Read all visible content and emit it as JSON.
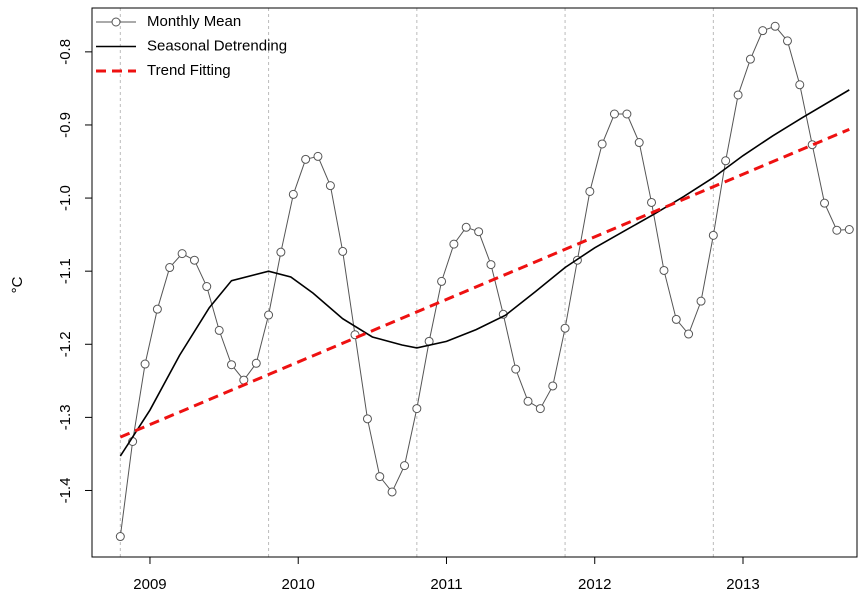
{
  "chart_data": {
    "type": "line",
    "ylabel": "°C",
    "x": [
      2008.8,
      2008.883,
      2008.967,
      2009.05,
      2009.133,
      2009.217,
      2009.3,
      2009.383,
      2009.467,
      2009.55,
      2009.633,
      2009.717,
      2009.8,
      2009.883,
      2009.967,
      2010.05,
      2010.133,
      2010.217,
      2010.3,
      2010.383,
      2010.467,
      2010.55,
      2010.633,
      2010.717,
      2010.8,
      2010.883,
      2010.967,
      2011.05,
      2011.133,
      2011.217,
      2011.3,
      2011.383,
      2011.467,
      2011.55,
      2011.633,
      2011.717,
      2011.8,
      2011.883,
      2011.967,
      2012.05,
      2012.133,
      2012.217,
      2012.3,
      2012.383,
      2012.467,
      2012.55,
      2012.633,
      2012.717,
      2012.8,
      2012.883,
      2012.967,
      2013.05,
      2013.133,
      2013.217,
      2013.3,
      2013.383,
      2013.467,
      2013.55,
      2013.633,
      2013.717
    ],
    "series": [
      {
        "name": "Monthly Mean",
        "color": "#555555",
        "marker": "circle",
        "dash": false,
        "values": [
          -1.463,
          -1.333,
          -1.227,
          -1.152,
          -1.095,
          -1.076,
          -1.085,
          -1.121,
          -1.181,
          -1.228,
          -1.249,
          -1.226,
          -1.16,
          -1.074,
          -0.995,
          -0.947,
          -0.943,
          -0.983,
          -1.073,
          -1.187,
          -1.302,
          -1.381,
          -1.402,
          -1.366,
          -1.288,
          -1.196,
          -1.114,
          -1.063,
          -1.04,
          -1.046,
          -1.091,
          -1.159,
          -1.234,
          -1.278,
          -1.288,
          -1.257,
          -1.178,
          -1.085,
          -0.991,
          -0.926,
          -0.885,
          -0.885,
          -0.924,
          -1.006,
          -1.099,
          -1.166,
          -1.186,
          -1.141,
          -1.051,
          -0.949,
          -0.859,
          -0.81,
          -0.771,
          -0.765,
          -0.785,
          -0.845,
          -0.927,
          -1.007,
          -1.044,
          -1.043
        ]
      },
      {
        "name": "Seasonal Detrending",
        "color": "#000000",
        "dash": false,
        "x": [
          2008.8,
          2009.0,
          2009.2,
          2009.4,
          2009.55,
          2009.8,
          2009.95,
          2010.1,
          2010.3,
          2010.5,
          2010.7,
          2010.8,
          2011.0,
          2011.2,
          2011.4,
          2011.6,
          2011.8,
          2012.0,
          2012.2,
          2012.4,
          2012.6,
          2012.8,
          2013.0,
          2013.2,
          2013.4,
          2013.717
        ],
        "values": [
          -1.353,
          -1.29,
          -1.215,
          -1.15,
          -1.113,
          -1.1,
          -1.108,
          -1.13,
          -1.165,
          -1.19,
          -1.201,
          -1.205,
          -1.196,
          -1.18,
          -1.16,
          -1.128,
          -1.095,
          -1.068,
          -1.045,
          -1.022,
          -0.998,
          -0.972,
          -0.942,
          -0.915,
          -0.89,
          -0.852
        ]
      },
      {
        "name": "Trend Fitting",
        "color": "#ee1111",
        "dash": true,
        "x": [
          2008.8,
          2013.717
        ],
        "values": [
          -1.327,
          -0.906
        ]
      }
    ],
    "xlim": [
      2008.609,
      2013.769
    ],
    "xticks": [
      2009,
      2010,
      2011,
      2012,
      2013
    ],
    "xgrid": [
      2008.8,
      2009.8,
      2010.8,
      2011.8,
      2012.8
    ],
    "ylim": [
      -1.491,
      -0.74
    ],
    "yticks": [
      -1.4,
      -1.3,
      -1.2,
      -1.1,
      {
        "value": -1.0,
        "label": "-1.0"
      },
      -0.9,
      -0.8
    ],
    "legend": "top-left"
  }
}
